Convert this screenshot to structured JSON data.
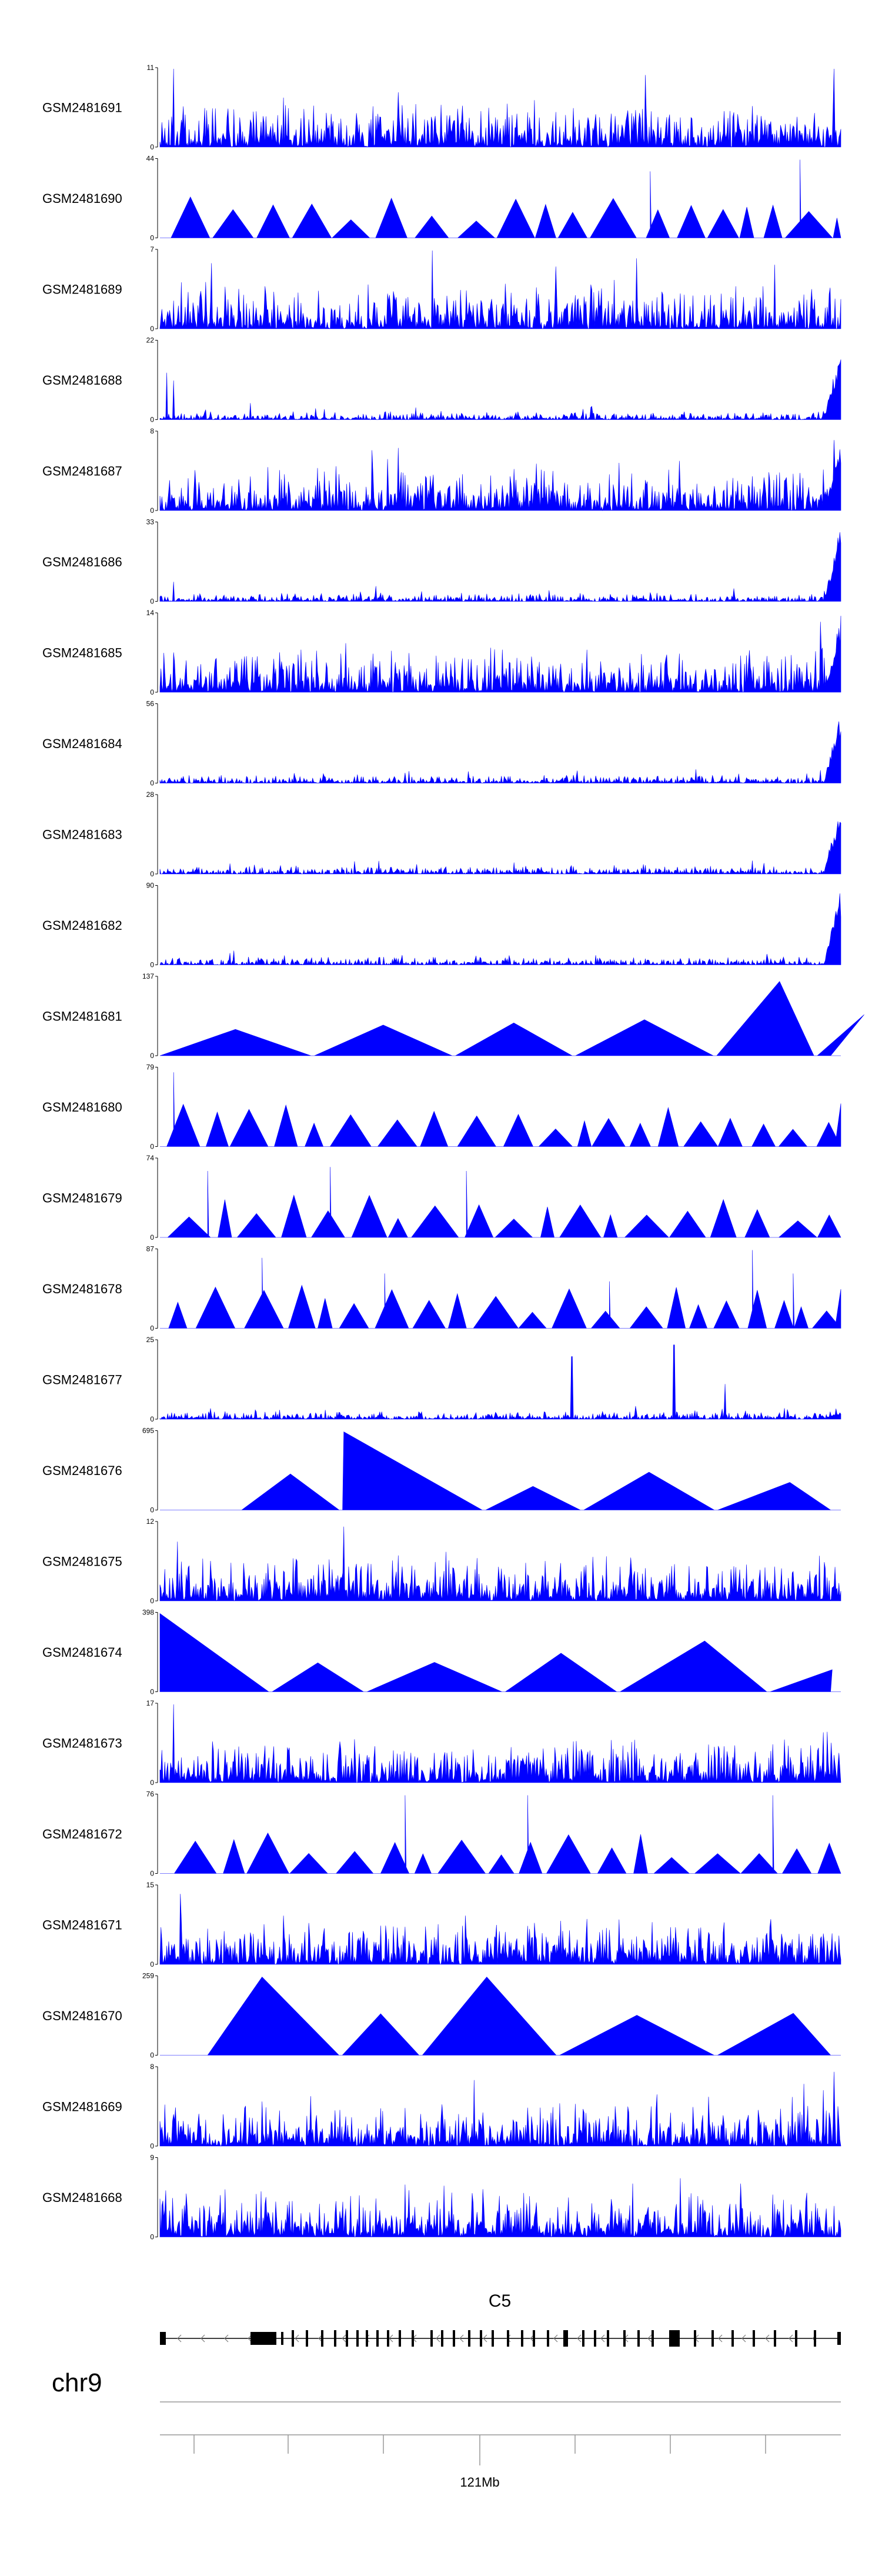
{
  "chart_data": {
    "type": "area",
    "color": "#0000ff",
    "tracks": [
      {
        "name": "GSM2481691",
        "ymax": 11,
        "ymin": 0,
        "pattern": "noise",
        "peaks": [
          [
            0.02,
            1.0
          ],
          [
            0.35,
            0.7
          ],
          [
            0.55,
            0.6
          ],
          [
            0.99,
            1.0
          ]
        ],
        "edge": 0
      },
      {
        "name": "GSM2481690",
        "ymax": 44,
        "ymin": 0,
        "pattern": "triangles",
        "peaks": [
          [
            0.72,
            0.85
          ],
          [
            0.94,
            1.0
          ]
        ],
        "edge": 0
      },
      {
        "name": "GSM2481689",
        "ymax": 7,
        "ymin": 0,
        "pattern": "noise",
        "peaks": [
          [
            0.4,
            1.0
          ],
          [
            0.7,
            0.9
          ]
        ],
        "edge": 0
      },
      {
        "name": "GSM2481688",
        "ymax": 22,
        "ymin": 0,
        "pattern": "lownoise",
        "peaks": [
          [
            0.01,
            0.6
          ],
          [
            0.02,
            0.5
          ]
        ],
        "edge": 1.0
      },
      {
        "name": "GSM2481687",
        "ymax": 8,
        "ymin": 0,
        "pattern": "noise",
        "peaks": [
          [
            0.35,
            0.8
          ],
          [
            0.99,
            0.9
          ]
        ],
        "edge": 0.9
      },
      {
        "name": "GSM2481686",
        "ymax": 33,
        "ymin": 0,
        "pattern": "lownoise",
        "peaks": [
          [
            0.02,
            0.25
          ]
        ],
        "edge": 1.0
      },
      {
        "name": "GSM2481685",
        "ymax": 14,
        "ymin": 0,
        "pattern": "noise",
        "peaks": [
          [
            0.97,
            0.9
          ]
        ],
        "edge": 1.0
      },
      {
        "name": "GSM2481684",
        "ymax": 56,
        "ymin": 0,
        "pattern": "lownoise",
        "peaks": [],
        "edge": 1.0
      },
      {
        "name": "GSM2481683",
        "ymax": 28,
        "ymin": 0,
        "pattern": "lownoise",
        "peaks": [],
        "edge": 1.0
      },
      {
        "name": "GSM2481682",
        "ymax": 90,
        "ymin": 0,
        "pattern": "lownoise",
        "peaks": [],
        "edge": 1.0
      },
      {
        "name": "GSM2481681",
        "ymax": 137,
        "ymin": 0,
        "pattern": "bigtriangles",
        "peaks": [
          [
            0.9,
            1.0
          ],
          [
            0.91,
            0.95
          ]
        ],
        "edge": 0
      },
      {
        "name": "GSM2481680",
        "ymax": 79,
        "ymin": 0,
        "pattern": "triangles",
        "peaks": [
          [
            0.02,
            0.95
          ]
        ],
        "edge": 0.55
      },
      {
        "name": "GSM2481679",
        "ymax": 74,
        "ymin": 0,
        "pattern": "triangles",
        "peaks": [
          [
            0.07,
            0.85
          ],
          [
            0.25,
            0.9
          ],
          [
            0.45,
            0.85
          ],
          [
            0.0,
            1.0
          ]
        ],
        "edge": 0
      },
      {
        "name": "GSM2481678",
        "ymax": 87,
        "ymin": 0,
        "pattern": "triangles",
        "peaks": [
          [
            0.15,
            0.9
          ],
          [
            0.33,
            0.7
          ],
          [
            0.66,
            0.6
          ],
          [
            0.87,
            1.0
          ],
          [
            0.93,
            0.7
          ]
        ],
        "edge": 0.5
      },
      {
        "name": "GSM2481677",
        "ymax": 25,
        "ymin": 0,
        "pattern": "lownoise",
        "peaks": [
          [
            0.605,
            0.8
          ],
          [
            0.755,
            0.95
          ],
          [
            0.83,
            0.45
          ]
        ],
        "edge": 0.1
      },
      {
        "name": "GSM2481676",
        "ymax": 695,
        "ymin": 0,
        "pattern": "bigtriangles",
        "peaks": [
          [
            0.27,
            1.0
          ]
        ],
        "edge": 0.25
      },
      {
        "name": "GSM2481675",
        "ymax": 12,
        "ymin": 0,
        "pattern": "noise",
        "peaks": [
          [
            0.27,
            0.95
          ]
        ],
        "edge": 0
      },
      {
        "name": "GSM2481674",
        "ymax": 398,
        "ymin": 0,
        "pattern": "bigtriangles",
        "peaks": [
          [
            0.0,
            1.0
          ],
          [
            0.8,
            0.65
          ]
        ],
        "edge": 0
      },
      {
        "name": "GSM2481673",
        "ymax": 17,
        "ymin": 0,
        "pattern": "noise",
        "peaks": [
          [
            0.02,
            1.0
          ],
          [
            0.98,
            0.65
          ]
        ],
        "edge": 0
      },
      {
        "name": "GSM2481672",
        "ymax": 76,
        "ymin": 0,
        "pattern": "triangles",
        "peaks": [
          [
            0.36,
            1.0
          ],
          [
            0.54,
            1.0
          ],
          [
            0.9,
            1.0
          ]
        ],
        "edge": 0
      },
      {
        "name": "GSM2481671",
        "ymax": 15,
        "ymin": 0,
        "pattern": "noise",
        "peaks": [
          [
            0.03,
            0.9
          ]
        ],
        "edge": 0
      },
      {
        "name": "GSM2481670",
        "ymax": 259,
        "ymin": 0,
        "pattern": "bigtriangles",
        "peaks": [
          [
            0.15,
            1.0
          ],
          [
            0.48,
            1.0
          ]
        ],
        "edge": 0
      },
      {
        "name": "GSM2481669",
        "ymax": 8,
        "ymin": 0,
        "pattern": "noise",
        "peaks": [
          [
            0.99,
            0.95
          ]
        ],
        "edge": 0
      },
      {
        "name": "GSM2481668",
        "ymax": 9,
        "ymin": 0,
        "pattern": "noise",
        "peaks": [],
        "edge": 0
      }
    ],
    "gene": {
      "name": "C5",
      "strand": "-"
    },
    "chromosome": "chr9",
    "axis_label": "121Mb"
  }
}
